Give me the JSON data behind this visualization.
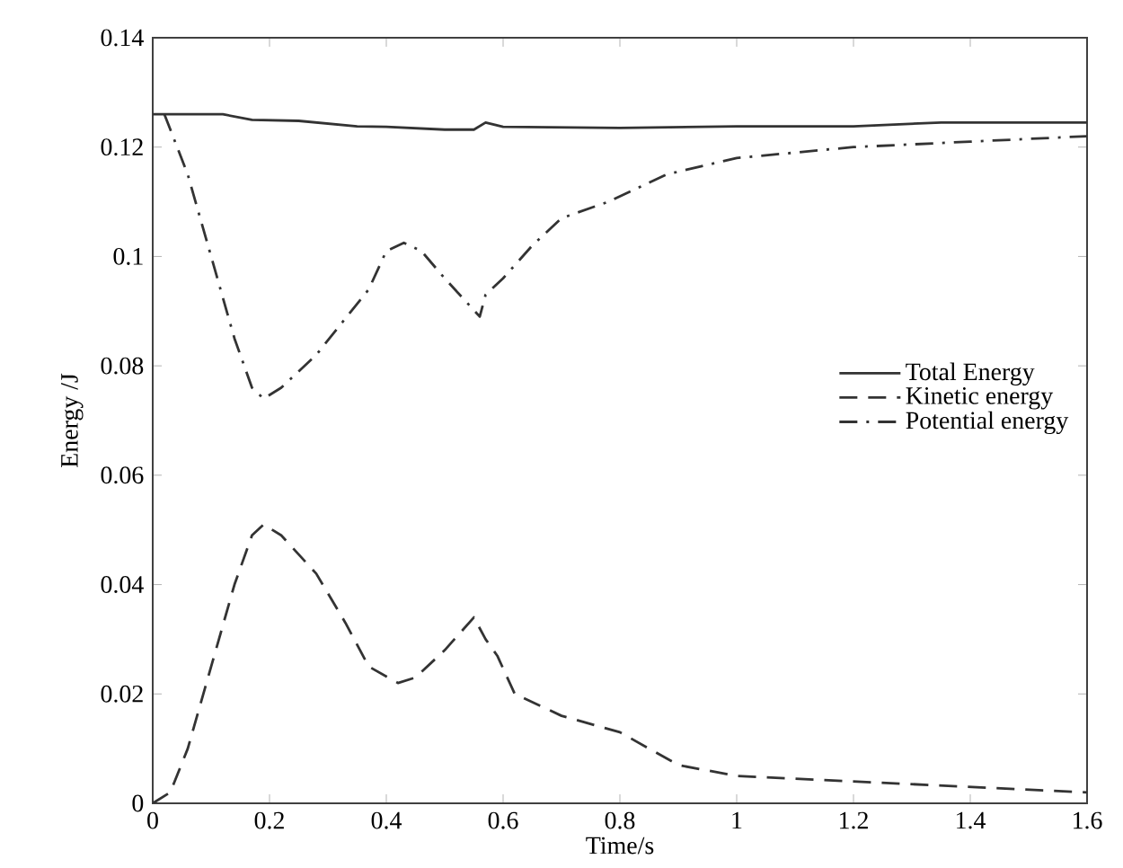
{
  "chart_data": {
    "type": "line",
    "xlabel": "Time/s",
    "ylabel": "Energy /J",
    "xlim": [
      0,
      1.6
    ],
    "ylim": [
      0,
      0.14
    ],
    "xticks": [
      0,
      0.2,
      0.4,
      0.6,
      0.8,
      1,
      1.2,
      1.4,
      1.6
    ],
    "yticks": [
      0,
      0.02,
      0.04,
      0.06,
      0.08,
      0.1,
      0.12,
      0.14
    ],
    "grid": false,
    "legend": "right",
    "marker": "none",
    "series": [
      {
        "name": "Total Energy",
        "color": "#333333",
        "line_style": "solid",
        "x": [
          0,
          0.12,
          0.17,
          0.25,
          0.35,
          0.4,
          0.5,
          0.55,
          0.57,
          0.6,
          0.8,
          1.0,
          1.2,
          1.35,
          1.6
        ],
        "values": [
          0.126,
          0.126,
          0.125,
          0.1248,
          0.1238,
          0.1237,
          0.1232,
          0.1232,
          0.1245,
          0.1237,
          0.1235,
          0.1238,
          0.1238,
          0.1245,
          0.1245
        ]
      },
      {
        "name": "Kinetic energy",
        "color": "#333333",
        "line_style": "dashed",
        "x": [
          0,
          0.03,
          0.06,
          0.1,
          0.14,
          0.17,
          0.19,
          0.22,
          0.28,
          0.33,
          0.37,
          0.42,
          0.45,
          0.5,
          0.55,
          0.57,
          0.59,
          0.62,
          0.7,
          0.8,
          0.85,
          0.9,
          1.0,
          1.2,
          1.4,
          1.6
        ],
        "values": [
          0,
          0.002,
          0.01,
          0.025,
          0.04,
          0.049,
          0.051,
          0.049,
          0.042,
          0.033,
          0.025,
          0.022,
          0.023,
          0.028,
          0.034,
          0.03,
          0.027,
          0.02,
          0.016,
          0.013,
          0.01,
          0.007,
          0.005,
          0.004,
          0.003,
          0.002
        ]
      },
      {
        "name": "Potential energy",
        "color": "#333333",
        "line_style": "dashdot",
        "x": [
          0.02,
          0.06,
          0.1,
          0.14,
          0.17,
          0.19,
          0.22,
          0.28,
          0.34,
          0.37,
          0.4,
          0.43,
          0.46,
          0.5,
          0.56,
          0.57,
          0.6,
          0.65,
          0.7,
          0.78,
          0.88,
          1.0,
          1.2,
          1.4,
          1.6
        ],
        "values": [
          0.126,
          0.115,
          0.1,
          0.085,
          0.076,
          0.074,
          0.076,
          0.082,
          0.09,
          0.094,
          0.101,
          0.1025,
          0.101,
          0.096,
          0.089,
          0.093,
          0.096,
          0.102,
          0.107,
          0.11,
          0.115,
          0.118,
          0.12,
          0.121,
          0.122
        ]
      }
    ]
  }
}
